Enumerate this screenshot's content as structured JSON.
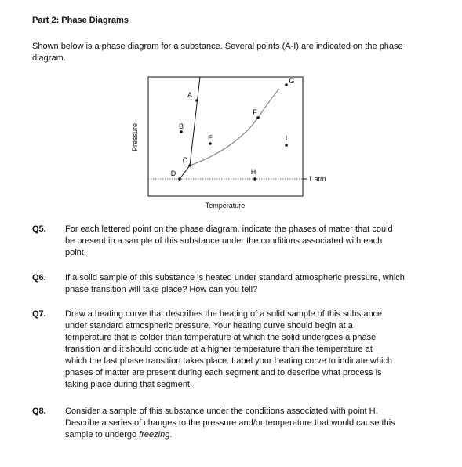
{
  "header": {
    "title": "Part 2: Phase Diagrams"
  },
  "intro": [
    "Shown below is a phase diagram for a substance. Several points (A-I) are indicated on the phase",
    "diagram."
  ],
  "diagram": {
    "y_axis_label": "Pressure",
    "x_axis_label": "Temperature",
    "reference_label": "1 atm",
    "points": [
      "A",
      "B",
      "C",
      "D",
      "E",
      "F",
      "G",
      "H",
      "I"
    ]
  },
  "questions": [
    {
      "number": "Q5.",
      "lines": [
        "For each lettered point on the phase diagram, indicate the phases of matter that could",
        "be present in a sample of this substance under the conditions associated with each",
        "point."
      ]
    },
    {
      "number": "Q6.",
      "lines": [
        "If a solid sample of this substance is heated under standard atmospheric pressure, which",
        "phase transition will take place? How can you tell?"
      ]
    },
    {
      "number": "Q7.",
      "lines": [
        "Draw a heating curve that describes the heating of a solid sample of this substance",
        "under standard atmospheric pressure. Your heating curve should begin at a",
        "temperature that is colder than temperature at which the solid undergoes a phase",
        "transition and it should conclude at a higher temperature than the temperature at",
        "which the last phase transition takes place. Label your heating curve to indicate which",
        "phases of matter are present during each segment and to describe what process is",
        "taking place during that segment."
      ]
    },
    {
      "number": "Q8.",
      "lines": [
        "Consider a sample of this substance under the conditions associated with point H.",
        "Describe a series of changes to the pressure and/or temperature that would cause this"
      ],
      "last_line": {
        "text": "sample to undergo ",
        "emphasis": "freezing",
        "end": "."
      }
    }
  ]
}
